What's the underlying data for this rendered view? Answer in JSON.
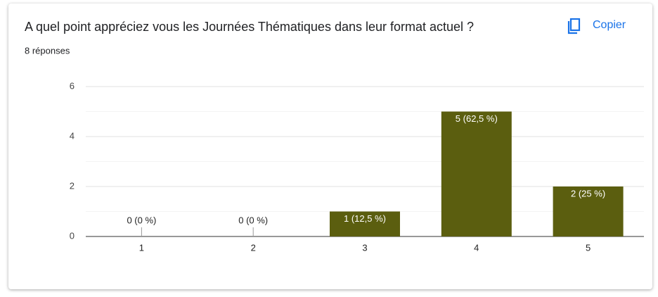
{
  "chart_data": {
    "type": "bar",
    "title": "A quel point appréciez vous les Journées Thématiques dans leur format actuel ?",
    "subtitle": "8 réponses",
    "button": "Copier",
    "categories": [
      "1",
      "2",
      "3",
      "4",
      "5"
    ],
    "values": [
      0,
      0,
      1,
      5,
      2
    ],
    "value_labels": [
      "0 (0 %)",
      "0 (0 %)",
      "1 (12,5 %)",
      "5 (62,5 %)",
      "2 (25 %)"
    ],
    "color": "#5b5e0f",
    "ylim": [
      0,
      6
    ],
    "yticks": [
      0,
      2,
      4,
      6
    ],
    "minor_yticks": [
      1,
      3,
      5
    ],
    "grid": true
  }
}
